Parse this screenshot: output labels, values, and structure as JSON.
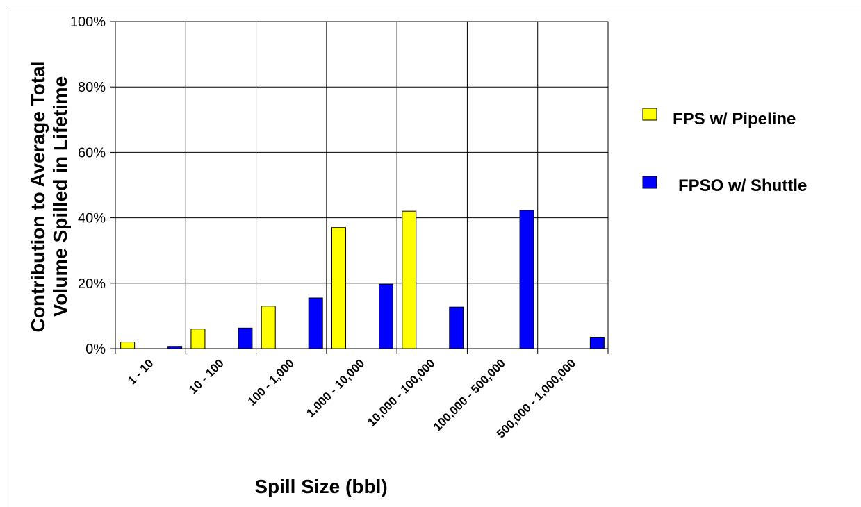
{
  "chart_data": {
    "type": "bar",
    "title": "",
    "xlabel": "Spill Size (bbl)",
    "ylabel_lines": [
      "Contribution to Average Total",
      "Volume Spilled in Lifetime"
    ],
    "categories": [
      "1 - 10",
      "10 - 100",
      "100 - 1,000",
      "1,000 - 10,000",
      "10,000 - 100,000",
      "100,000 - 500,000",
      "500,000 - 1,000,000"
    ],
    "series": [
      {
        "name": "FPS w/ Pipeline",
        "color": "#ffff00",
        "values": [
          2,
          6,
          13,
          37,
          42,
          0,
          0
        ]
      },
      {
        "name": "FPSO w/ Shuttle",
        "color": "#0000ff",
        "values": [
          0.7,
          6.3,
          15.5,
          19.7,
          12.7,
          42.3,
          3.5
        ]
      }
    ],
    "ylim": [
      0,
      100
    ],
    "y_ticks": [
      "0%",
      "20%",
      "40%",
      "60%",
      "80%",
      "100%"
    ],
    "grid": true,
    "legend_position": "right"
  }
}
